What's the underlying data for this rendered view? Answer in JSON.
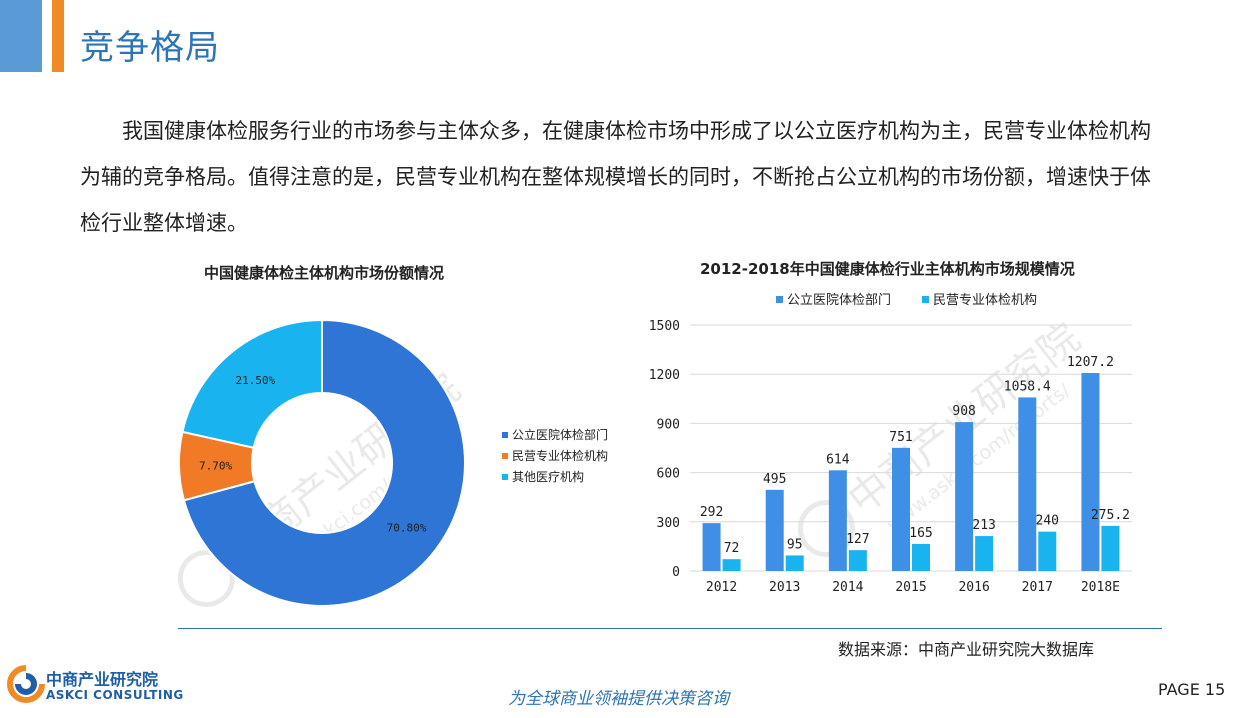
{
  "header": {
    "title": "竞争格局"
  },
  "intro": {
    "text": "我国健康体检服务行业的市场参与主体众多，在健康体检市场中形成了以公立医疗机构为主，民营专业体检机构为辅的竞争格局。值得注意的是，民营专业机构在整体规模增长的同时，不断抢占公立机构的市场份额，增速快于体检行业整体增速。"
  },
  "colors": {
    "public": "#2e75d6",
    "private": "#f07a26",
    "other": "#19b4f0",
    "bar_public": "#3f8fe6",
    "bar_private": "#19b4f0",
    "accent": "#2e75b6"
  },
  "chart_data": [
    {
      "type": "pie",
      "title": "中国健康体检主体机构市场份额情况",
      "donut": true,
      "slices": [
        {
          "name": "公立医院体检部门",
          "value": 70.8,
          "label": "70.80%"
        },
        {
          "name": "民营专业体检机构",
          "value": 7.7,
          "label": "7.70%"
        },
        {
          "name": "其他医疗机构",
          "value": 21.5,
          "label": "21.50%"
        }
      ],
      "legend_position": "right"
    },
    {
      "type": "bar",
      "title": "2012-2018年中国健康体检行业主体机构市场规模情况",
      "categories": [
        "2012",
        "2013",
        "2014",
        "2015",
        "2016",
        "2017",
        "2018E"
      ],
      "series": [
        {
          "name": "公立医院体检部门",
          "values": [
            292,
            495,
            614,
            751,
            908,
            1058.4,
            1207.2
          ],
          "labels": [
            "292",
            "495",
            "614",
            "751",
            "908",
            "1058.4",
            "1207.2"
          ]
        },
        {
          "name": "民营专业体检机构",
          "values": [
            72,
            95,
            127,
            165,
            213,
            240,
            275.2
          ],
          "labels": [
            "72",
            "95",
            "127",
            "165",
            "213",
            "240",
            "275.2"
          ]
        }
      ],
      "ylim": [
        0,
        1500
      ],
      "yticks": [
        "0",
        "300",
        "600",
        "900",
        "1200",
        "1500"
      ],
      "grid": true,
      "legend_position": "top"
    }
  ],
  "footer": {
    "source": "数据来源：中商产业研究院大数据库",
    "slogan": "为全球商业领袖提供决策咨询",
    "page": "PAGE  15",
    "logo_cn": "中商产业研究院",
    "logo_en": "ASKCI CONSULTING"
  },
  "watermark": {
    "cn": "中商产业研究院",
    "url": "www.askci.com/reports/"
  }
}
